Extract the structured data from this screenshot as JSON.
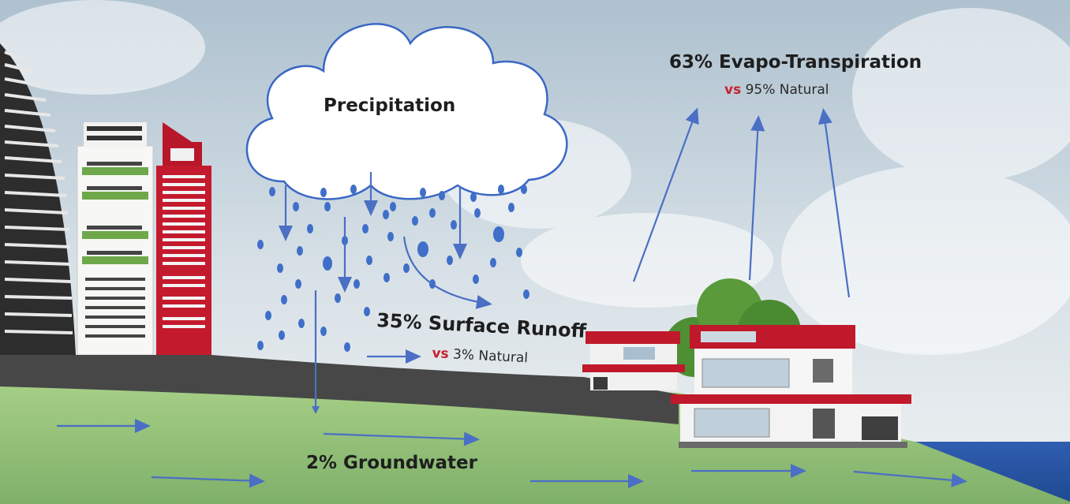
{
  "labels": {
    "precipitation": "Precipitation",
    "evapo_main": "63% Evapo-Transpiration",
    "evapo_vs": "vs",
    "evapo_natural": "95% Natural",
    "runoff_main": "35% Surface Runoff",
    "runoff_vs": "vs",
    "runoff_natural": "3% Natural",
    "groundwater": "2% Groundwater"
  },
  "colors": {
    "arrow": "#4a6fc4",
    "drop": "#3f6fc9",
    "vs": "#c8202f",
    "grass": "#9fc97f",
    "road": "#4a4a4a",
    "water": "#2e5aa8",
    "roof_red": "#c0192b"
  }
}
